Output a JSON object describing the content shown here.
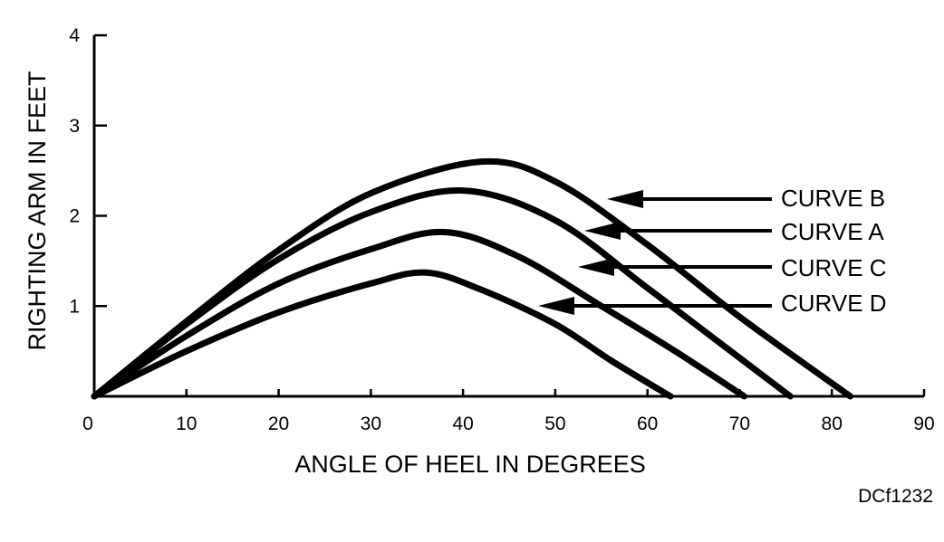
{
  "chart_data": {
    "type": "line",
    "xlabel": "ANGLE OF HEEL IN DEGREES",
    "ylabel": "RIGHTING ARM IN FEET",
    "xlim": [
      0,
      90
    ],
    "ylim": [
      0,
      4
    ],
    "x_ticks": [
      "0",
      "10",
      "20",
      "30",
      "40",
      "50",
      "60",
      "70",
      "80",
      "90"
    ],
    "y_ticks": [
      "1",
      "2",
      "3",
      "4"
    ],
    "grid": false,
    "series": [
      {
        "name": "CURVE B",
        "x": [
          0,
          10,
          20,
          30,
          42,
          50,
          60,
          70,
          82
        ],
        "y": [
          0,
          0.83,
          1.62,
          2.25,
          2.6,
          2.38,
          1.68,
          0.88,
          0
        ]
      },
      {
        "name": "CURVE A",
        "x": [
          0,
          10,
          20,
          30,
          40,
          50,
          60,
          68,
          75.5
        ],
        "y": [
          0,
          0.8,
          1.52,
          2.04,
          2.28,
          1.95,
          1.2,
          0.58,
          0
        ]
      },
      {
        "name": "CURVE C",
        "x": [
          0,
          10,
          20,
          30,
          38,
          46,
          55,
          63,
          70.5
        ],
        "y": [
          0,
          0.67,
          1.25,
          1.63,
          1.82,
          1.55,
          1.0,
          0.5,
          0
        ]
      },
      {
        "name": "CURVE D",
        "x": [
          0,
          10,
          20,
          30,
          36,
          42,
          50,
          56,
          62.5
        ],
        "y": [
          0,
          0.5,
          0.93,
          1.25,
          1.37,
          1.18,
          0.8,
          0.4,
          0
        ]
      }
    ]
  },
  "labels": {
    "curve_b": "CURVE B",
    "curve_a": "CURVE A",
    "curve_c": "CURVE C",
    "curve_d": "CURVE D",
    "figure_id": "DCf1232"
  }
}
